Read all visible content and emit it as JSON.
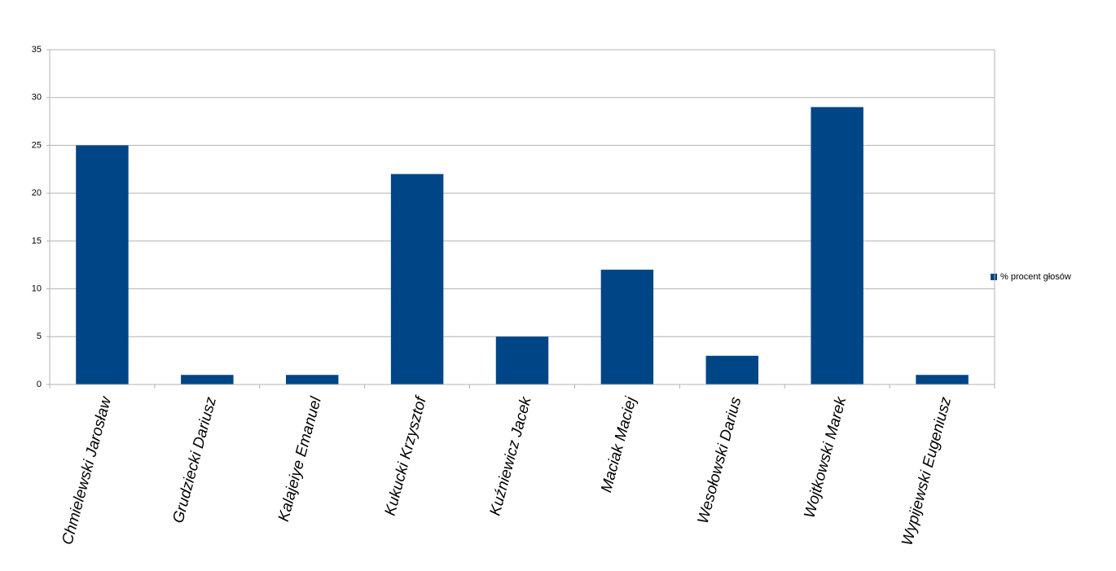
{
  "chart_data": {
    "type": "bar",
    "categories": [
      "Chmielewski Jarosław",
      "Grudziecki Dariusz",
      "Kalajeiye Emanuel",
      "Kukucki Krzysztof",
      "Kuźniewicz Jacek",
      "Maciak Maciej",
      "Wesołowski Darius",
      "Wojtkowski Marek",
      "Wypijewski Eugeniusz"
    ],
    "series": [
      {
        "name": "% procent głosów",
        "color": "#004586",
        "values": [
          25,
          1,
          1,
          22,
          5,
          12,
          3,
          29,
          1
        ]
      }
    ],
    "ylim": [
      0,
      35
    ],
    "yticks": [
      0,
      5,
      10,
      15,
      20,
      25,
      30,
      35
    ],
    "grid": true,
    "legend": "right"
  }
}
